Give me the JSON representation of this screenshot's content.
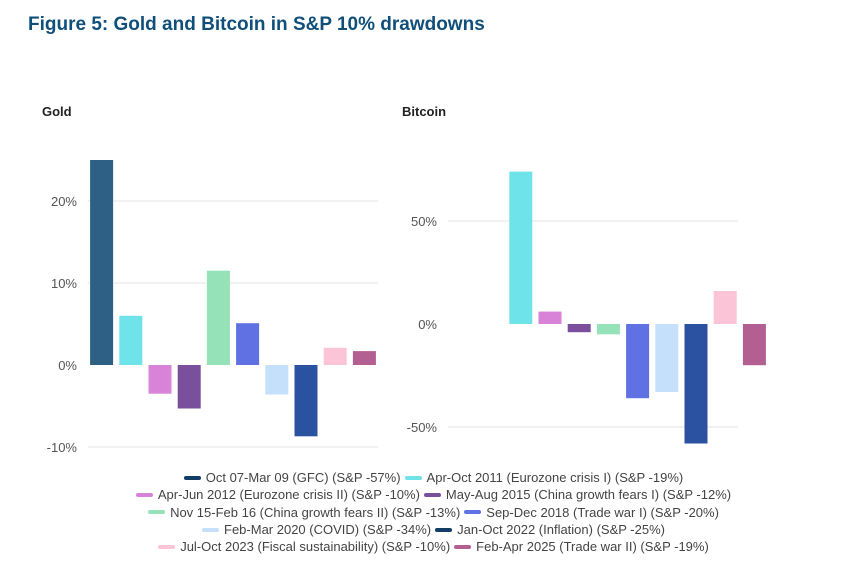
{
  "title": "Figure 5: Gold and Bitcoin in S&P 10% drawdowns",
  "legend_rows": [
    [
      0,
      1
    ],
    [
      2,
      3
    ],
    [
      4,
      5
    ],
    [
      6,
      7
    ],
    [
      8,
      9
    ]
  ],
  "chart_data": [
    {
      "type": "bar",
      "title": "Gold",
      "categories": [
        "Oct 07-Mar 09 (GFC) (S&P -57%)",
        "Apr-Oct 2011 (Eurozone crisis I) (S&P -19%)",
        "Apr-Jun 2012 (Eurozone crisis II) (S&P -10%)",
        "May-Aug 2015 (China growth fears I) (S&P -12%)",
        "Nov 15-Feb 16 (China growth fears II) (S&P -13%)",
        "Sep-Dec 2018 (Trade war I) (S&P -20%)",
        "Feb-Mar 2020 (COVID) (S&P -34%)",
        "Jan-Oct 2022 (Inflation) (S&P -25%)",
        "Jul-Oct 2023 (Fiscal sustainability) (S&P -10%)",
        "Feb-Apr 2025 (Trade war II) (S&P -19%)"
      ],
      "values": [
        25,
        6,
        -3.5,
        -5.3,
        11.5,
        5.1,
        -3.6,
        -8.7,
        2.1,
        1.7
      ],
      "yticks": [
        20,
        10,
        0,
        -10
      ],
      "ytick_labels": [
        "20%",
        "10%",
        "0%",
        "-10%"
      ],
      "ylim": [
        -11,
        27
      ]
    },
    {
      "type": "bar",
      "title": "Bitcoin",
      "categories": [
        "Oct 07-Mar 09 (GFC) (S&P -57%)",
        "Apr-Oct 2011 (Eurozone crisis I) (S&P -19%)",
        "Apr-Jun 2012 (Eurozone crisis II) (S&P -10%)",
        "May-Aug 2015 (China growth fears I) (S&P -12%)",
        "Nov 15-Feb 16 (China growth fears II) (S&P -13%)",
        "Sep-Dec 2018 (Trade war I) (S&P -20%)",
        "Feb-Mar 2020 (COVID) (S&P -34%)",
        "Jan-Oct 2022 (Inflation) (S&P -25%)",
        "Jul-Oct 2023 (Fiscal sustainability) (S&P -10%)",
        "Feb-Apr 2025 (Trade war II) (S&P -19%)"
      ],
      "values": [
        null,
        74,
        6,
        -4,
        -5,
        -36,
        -33,
        -58,
        16,
        -20
      ],
      "yticks": [
        50,
        0,
        -50
      ],
      "ytick_labels": [
        "50%",
        "0%",
        "-50%"
      ],
      "ylim": [
        -60,
        80
      ]
    }
  ],
  "colors": [
    "#2e5f85",
    "#6ee3ea",
    "#d882d8",
    "#7a4f9c",
    "#96e2b8",
    "#6071e4",
    "#c4e0fb",
    "#2b52a1",
    "#fbc4d7",
    "#b45f92"
  ],
  "legend_colors": [
    "#123d66",
    "#6ee3ea",
    "#d882d8",
    "#7a4f9c",
    "#96e2b8",
    "#6071e4",
    "#c4e0fb",
    "#123d66",
    "#fbc4d7",
    "#b45f92"
  ]
}
